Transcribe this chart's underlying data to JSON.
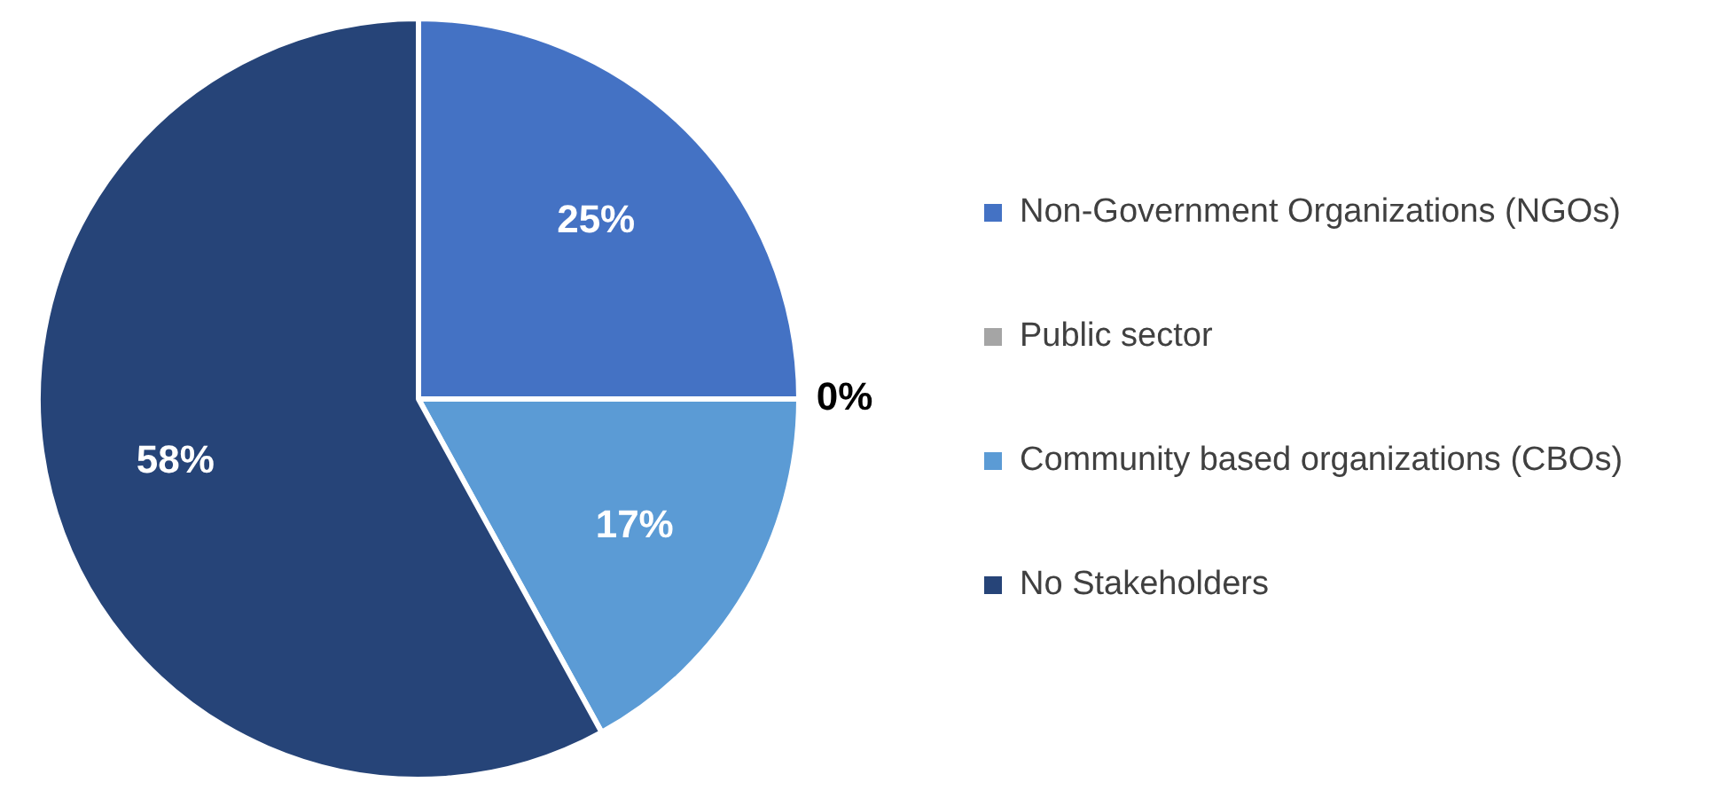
{
  "chart_data": {
    "type": "pie",
    "categories": [
      "Non-Government Organizations (NGOs)",
      "Public sector",
      "Community based organizations (CBOs)",
      "No Stakeholders"
    ],
    "values": [
      25,
      0,
      17,
      58
    ],
    "value_labels": [
      "25%",
      "0%",
      "17%",
      "58%"
    ],
    "colors": [
      "#4472c4",
      "#a5a5a5",
      "#5b9bd5",
      "#264478"
    ],
    "legend": "right"
  }
}
